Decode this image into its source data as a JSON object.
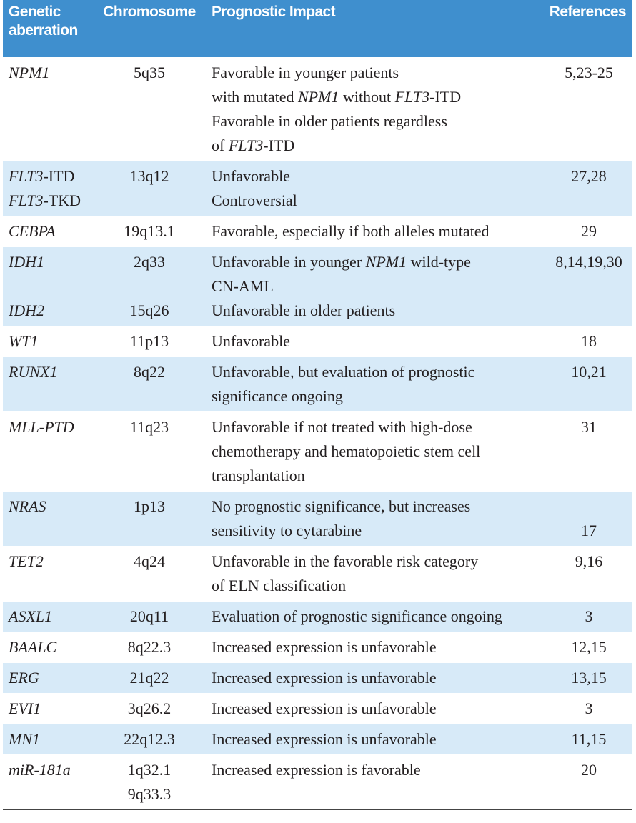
{
  "table": {
    "header": [
      "Genetic aberration",
      "Chromosome",
      "Prognostic Impact",
      "References"
    ],
    "rows": [
      {
        "shade": false,
        "lines": [
          [
            {
              "italic": "NPM1"
            },
            "5q35",
            "Favorable in younger patients",
            "5,23-25"
          ],
          [
            null,
            null,
            [
              "with mutated ",
              {
                "italic": "NPM1"
              },
              " without ",
              {
                "italic": "FLT3"
              },
              "-ITD"
            ],
            null
          ],
          [
            null,
            null,
            "Favorable in older patients regardless",
            null
          ],
          [
            null,
            null,
            [
              "of ",
              {
                "italic": "FLT3"
              },
              "-ITD"
            ],
            null
          ]
        ]
      },
      {
        "shade": true,
        "lines": [
          [
            [
              {
                "italic": "FLT3"
              },
              "-ITD"
            ],
            "13q12",
            "Unfavorable",
            "27,28"
          ],
          [
            [
              {
                "italic": "FLT3"
              },
              "-TKD"
            ],
            null,
            "Controversial",
            null
          ]
        ]
      },
      {
        "shade": false,
        "lines": [
          [
            {
              "italic": "CEBPA"
            },
            "19q13.1",
            "Favorable, especially if both alleles mutated",
            "29"
          ]
        ]
      },
      {
        "shade": true,
        "lines": [
          [
            {
              "italic": "IDH1"
            },
            "2q33",
            [
              "Unfavorable in younger ",
              {
                "italic": "NPM1"
              },
              " wild-type"
            ],
            "8,14,19,30"
          ],
          [
            null,
            null,
            "CN-AML",
            null
          ],
          [
            {
              "italic": "IDH2"
            },
            "15q26",
            "Unfavorable in older patients",
            null
          ]
        ]
      },
      {
        "shade": false,
        "lines": [
          [
            {
              "italic": "WT1"
            },
            "11p13",
            "Unfavorable",
            "18"
          ]
        ]
      },
      {
        "shade": true,
        "lines": [
          [
            {
              "italic": "RUNX1"
            },
            "8q22",
            "Unfavorable, but evaluation of prognostic",
            "10,21"
          ],
          [
            null,
            null,
            "significance ongoing",
            null
          ]
        ]
      },
      {
        "shade": false,
        "lines": [
          [
            {
              "italic": "MLL-PTD"
            },
            "11q23",
            "Unfavorable if not treated with high-dose",
            "31"
          ],
          [
            null,
            null,
            "chemotherapy and hematopoietic stem cell",
            null
          ],
          [
            null,
            null,
            "transplantation",
            null
          ]
        ]
      },
      {
        "shade": true,
        "lines": [
          [
            {
              "italic": "NRAS"
            },
            "1p13",
            "No prognostic significance, but increases",
            null
          ],
          [
            null,
            null,
            "sensitivity to cytarabine",
            "17"
          ]
        ]
      },
      {
        "shade": false,
        "lines": [
          [
            {
              "italic": "TET2"
            },
            "4q24",
            "Unfavorable in the favorable risk category",
            "9,16"
          ],
          [
            null,
            null,
            "of ELN classification",
            null
          ]
        ]
      },
      {
        "shade": true,
        "lines": [
          [
            {
              "italic": "ASXL1"
            },
            "20q11",
            "Evaluation of prognostic significance ongoing",
            "3"
          ]
        ]
      },
      {
        "shade": false,
        "lines": [
          [
            {
              "italic": "BAALC"
            },
            "8q22.3",
            "Increased expression is unfavorable",
            "12,15"
          ]
        ]
      },
      {
        "shade": true,
        "lines": [
          [
            {
              "italic": "ERG"
            },
            "21q22",
            "Increased expression is unfavorable",
            "13,15"
          ]
        ]
      },
      {
        "shade": false,
        "lines": [
          [
            {
              "italic": "EVI1"
            },
            "3q26.2",
            "Increased expression is unfavorable",
            "3"
          ]
        ]
      },
      {
        "shade": true,
        "lines": [
          [
            {
              "italic": "MN1"
            },
            "22q12.3",
            "Increased expression is unfavorable",
            "11,15"
          ]
        ]
      },
      {
        "shade": false,
        "lines": [
          [
            {
              "italic": "miR-181a"
            },
            "1q32.1",
            "Increased expression is favorable",
            "20"
          ],
          [
            null,
            "9q33.3",
            null,
            null
          ]
        ]
      }
    ]
  }
}
